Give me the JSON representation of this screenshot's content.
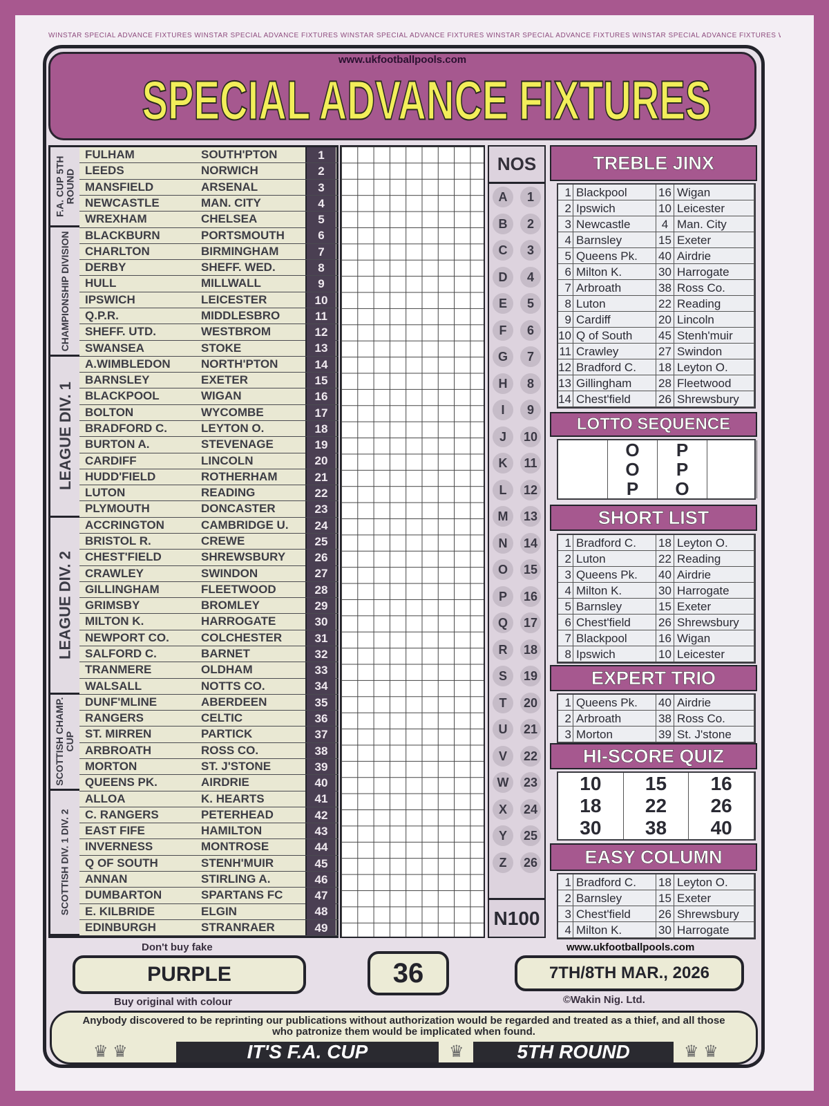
{
  "border_text": "WINSTAR SPECIAL ADVANCE FIXTURES",
  "header": {
    "url": "www.ukfootballpools.com",
    "title": "SPECIAL ADVANCE FIXTURES"
  },
  "sections": [
    {
      "label": "F.A. CUP 5TH ROUND",
      "rows": 5
    },
    {
      "label": "CHAMPIONSHIP DIVISION",
      "rows": 8
    },
    {
      "label": "LEAGUE DIV. 1",
      "rows": 10
    },
    {
      "label": "LEAGUE DIV. 2",
      "rows": 11
    },
    {
      "label": "SCOTTISH CHAMP. CUP",
      "rows": 6
    },
    {
      "label": "SCOTTISH DIV. 1 DIV. 2",
      "rows": 9
    }
  ],
  "fixtures": [
    [
      "FULHAM",
      "SOUTH'PTON"
    ],
    [
      "LEEDS",
      "NORWICH"
    ],
    [
      "MANSFIELD",
      "ARSENAL"
    ],
    [
      "NEWCASTLE",
      "MAN. CITY"
    ],
    [
      "WREXHAM",
      "CHELSEA"
    ],
    [
      "BLACKBURN",
      "PORTSMOUTH"
    ],
    [
      "CHARLTON",
      "BIRMINGHAM"
    ],
    [
      "DERBY",
      "SHEFF. WED."
    ],
    [
      "HULL",
      "MILLWALL"
    ],
    [
      "IPSWICH",
      "LEICESTER"
    ],
    [
      "Q.P.R.",
      "MIDDLESBRO"
    ],
    [
      "SHEFF. UTD.",
      "WESTBROM"
    ],
    [
      "SWANSEA",
      "STOKE"
    ],
    [
      "A.WIMBLEDON",
      "NORTH'PTON"
    ],
    [
      "BARNSLEY",
      "EXETER"
    ],
    [
      "BLACKPOOL",
      "WIGAN"
    ],
    [
      "BOLTON",
      "WYCOMBE"
    ],
    [
      "BRADFORD C.",
      "LEYTON O."
    ],
    [
      "BURTON A.",
      "STEVENAGE"
    ],
    [
      "CARDIFF",
      "LINCOLN"
    ],
    [
      "HUDD'FIELD",
      "ROTHERHAM"
    ],
    [
      "LUTON",
      "READING"
    ],
    [
      "PLYMOUTH",
      "DONCASTER"
    ],
    [
      "ACCRINGTON",
      "CAMBRIDGE U."
    ],
    [
      "BRISTOL R.",
      "CREWE"
    ],
    [
      "CHEST'FIELD",
      "SHREWSBURY"
    ],
    [
      "CRAWLEY",
      "SWINDON"
    ],
    [
      "GILLINGHAM",
      "FLEETWOOD"
    ],
    [
      "GRIMSBY",
      "BROMLEY"
    ],
    [
      "MILTON K.",
      "HARROGATE"
    ],
    [
      "NEWPORT CO.",
      "COLCHESTER"
    ],
    [
      "SALFORD C.",
      "BARNET"
    ],
    [
      "TRANMERE",
      "OLDHAM"
    ],
    [
      "WALSALL",
      "NOTTS CO."
    ],
    [
      "DUNF'MLINE",
      "ABERDEEN"
    ],
    [
      "RANGERS",
      "CELTIC"
    ],
    [
      "ST. MIRREN",
      "PARTICK"
    ],
    [
      "ARBROATH",
      "ROSS CO."
    ],
    [
      "MORTON",
      "ST. J'STONE"
    ],
    [
      "QUEENS PK.",
      "AIRDRIE"
    ],
    [
      "ALLOA",
      "K. HEARTS"
    ],
    [
      "C. RANGERS",
      "PETERHEAD"
    ],
    [
      "EAST FIFE",
      "HAMILTON"
    ],
    [
      "INVERNESS",
      "MONTROSE"
    ],
    [
      "Q OF SOUTH",
      "STENH'MUIR"
    ],
    [
      "ANNAN",
      "STIRLING A."
    ],
    [
      "DUMBARTON",
      "SPARTANS FC"
    ],
    [
      "E. KILBRIDE",
      "ELGIN"
    ],
    [
      "EDINBURGH",
      "STRANRAER"
    ]
  ],
  "nos": {
    "title": "NOS",
    "letters": [
      "A",
      "B",
      "C",
      "D",
      "E",
      "F",
      "G",
      "H",
      "I",
      "J",
      "K",
      "L",
      "M",
      "N",
      "O",
      "P",
      "Q",
      "R",
      "S",
      "T",
      "U",
      "V",
      "W",
      "X",
      "Y",
      "Z"
    ],
    "footer": "N100"
  },
  "treble_jinx": {
    "title": "TREBLE JINX",
    "rows": [
      [
        "1",
        "Blackpool",
        "16",
        "Wigan"
      ],
      [
        "2",
        "Ipswich",
        "10",
        "Leicester"
      ],
      [
        "3",
        "Newcastle",
        "4",
        "Man. City"
      ],
      [
        "4",
        "Barnsley",
        "15",
        "Exeter"
      ],
      [
        "5",
        "Queens Pk.",
        "40",
        "Airdrie"
      ],
      [
        "6",
        "Milton K.",
        "30",
        "Harrogate"
      ],
      [
        "7",
        "Arbroath",
        "38",
        "Ross Co."
      ],
      [
        "8",
        "Luton",
        "22",
        "Reading"
      ],
      [
        "9",
        "Cardiff",
        "20",
        "Lincoln"
      ],
      [
        "10",
        "Q of South",
        "45",
        "Stenh'muir"
      ],
      [
        "11",
        "Crawley",
        "27",
        "Swindon"
      ],
      [
        "12",
        "Bradford C.",
        "18",
        "Leyton O."
      ],
      [
        "13",
        "Gillingham",
        "28",
        "Fleetwood"
      ],
      [
        "14",
        "Chest'field",
        "26",
        "Shrewsbury"
      ]
    ]
  },
  "lotto_sequence": {
    "title": "LOTTO SEQUENCE",
    "rows": [
      [
        "",
        "O",
        "P",
        ""
      ],
      [
        "",
        "O",
        "P",
        ""
      ],
      [
        "",
        "P",
        "O",
        ""
      ]
    ]
  },
  "short_list": {
    "title": "SHORT LIST",
    "rows": [
      [
        "1",
        "Bradford C.",
        "18",
        "Leyton O."
      ],
      [
        "2",
        "Luton",
        "22",
        "Reading"
      ],
      [
        "3",
        "Queens Pk.",
        "40",
        "Airdrie"
      ],
      [
        "4",
        "Milton K.",
        "30",
        "Harrogate"
      ],
      [
        "5",
        "Barnsley",
        "15",
        "Exeter"
      ],
      [
        "6",
        "Chest'field",
        "26",
        "Shrewsbury"
      ],
      [
        "7",
        "Blackpool",
        "16",
        "Wigan"
      ],
      [
        "8",
        "Ipswich",
        "10",
        "Leicester"
      ]
    ]
  },
  "expert_trio": {
    "title": "EXPERT TRIO",
    "rows": [
      [
        "1",
        "Queens Pk.",
        "40",
        "Airdrie"
      ],
      [
        "2",
        "Arbroath",
        "38",
        "Ross Co."
      ],
      [
        "3",
        "Morton",
        "39",
        "St. J'stone"
      ]
    ]
  },
  "hi_score_quiz": {
    "title": "HI-SCORE QUIZ",
    "numbers": [
      "10",
      "15",
      "16",
      "18",
      "22",
      "26",
      "30",
      "38",
      "40"
    ]
  },
  "easy_column": {
    "title": "EASY COLUMN",
    "rows": [
      [
        "1",
        "Bradford C.",
        "18",
        "Leyton O."
      ],
      [
        "2",
        "Barnsley",
        "15",
        "Exeter"
      ],
      [
        "3",
        "Chest'field",
        "26",
        "Shrewsbury"
      ],
      [
        "4",
        "Milton K.",
        "30",
        "Harrogate"
      ]
    ]
  },
  "bottom": {
    "dont_buy": "Don't buy fake",
    "colour": "PURPLE",
    "buy_original": "Buy original with colour",
    "issue": "36",
    "url": "www.ukfootballpools.com",
    "date": "7TH/8TH MAR., 2026",
    "copyright": "©Wakin Nig. Ltd."
  },
  "footer": {
    "warning": "Anybody discovered to be reprinting our publications without authorization would be regarded and treated as a thief, and all those who patronize them would be implicated when found.",
    "banner_left": "IT'S F.A. CUP",
    "banner_right": "5TH ROUND"
  }
}
